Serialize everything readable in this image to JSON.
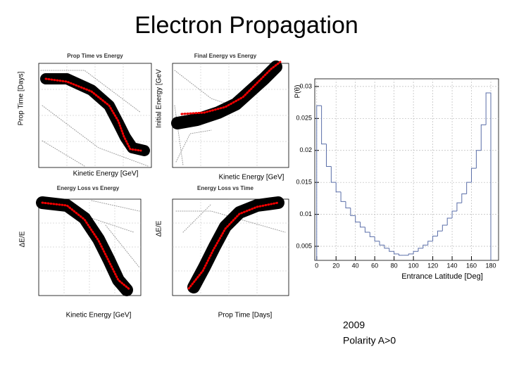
{
  "title": "Electron Propagation",
  "panels": [
    {
      "title": "Prop Time vs Energy",
      "ylabel": "Prop Time [Days]",
      "xlabel": "Kinetic Energy [GeV]"
    },
    {
      "title": "Final Energy vs Energy",
      "ylabel": "Initial Energy [GeV",
      "xlabel": "Kinetic Energy [GeV]"
    },
    {
      "title": "Energy Loss vs Energy",
      "ylabel": "ΔE/E",
      "xlabel": "Kinetic Energy [GeV]"
    },
    {
      "title": "Energy Loss vs Time",
      "ylabel": "ΔE/E",
      "xlabel": "Prop Time [Days]"
    }
  ],
  "chart_data": {
    "type": "histogram",
    "ylabel": "P(θ)",
    "xlabel": "Entrance Latitude [Deg]",
    "color": "#5a6ea8",
    "bins": [
      0,
      5,
      10,
      15,
      20,
      25,
      30,
      35,
      40,
      45,
      50,
      55,
      60,
      65,
      70,
      75,
      80,
      85,
      90,
      95,
      100,
      105,
      110,
      115,
      120,
      125,
      130,
      135,
      140,
      145,
      150,
      155,
      160,
      165,
      170,
      175,
      180
    ],
    "values": [
      0.027,
      0.021,
      0.0175,
      0.015,
      0.0135,
      0.012,
      0.011,
      0.0098,
      0.0088,
      0.008,
      0.0072,
      0.0065,
      0.0058,
      0.0052,
      0.0047,
      0.0042,
      0.0038,
      0.0036,
      0.0036,
      0.0038,
      0.0042,
      0.0047,
      0.0052,
      0.0058,
      0.0066,
      0.0074,
      0.0083,
      0.0094,
      0.0105,
      0.0118,
      0.0132,
      0.015,
      0.0172,
      0.02,
      0.024,
      0.029
    ],
    "xlim": [
      -2,
      188
    ],
    "ylim": [
      0.0028,
      0.0312
    ],
    "xticks": [
      0,
      20,
      40,
      60,
      80,
      100,
      120,
      140,
      160,
      180
    ],
    "yticks": [
      0.005,
      0.01,
      0.015,
      0.02,
      0.025,
      0.03
    ],
    "grid": true
  },
  "note": [
    "2009",
    "Polarity A>0"
  ]
}
